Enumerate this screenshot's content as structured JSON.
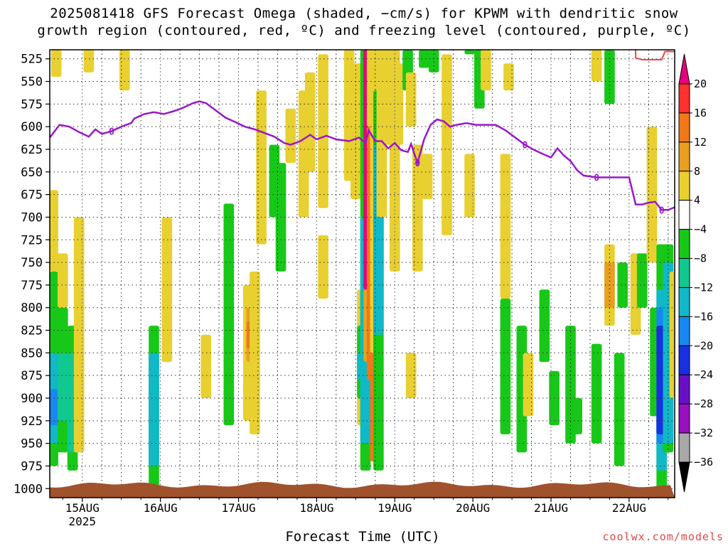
{
  "title_line1": "2025081418 GFS Forecast Omega (shaded, −cm/s) for KPWM with dendritic snow",
  "title_line2": "growth region (contoured, red, ºC) and freezing level (contoured, purple, ºC)",
  "xlabel": "Forecast Time (UTC)",
  "credit": "coolwx.com/models",
  "chart_data": {
    "type": "heatmap",
    "y_ticks": [
      "525",
      "550",
      "575",
      "600",
      "625",
      "650",
      "675",
      "700",
      "725",
      "750",
      "775",
      "800",
      "825",
      "850",
      "875",
      "900",
      "925",
      "950",
      "975",
      "1000"
    ],
    "y_range": [
      515,
      1010
    ],
    "x_ticks": [
      "15AUG",
      "16AUG",
      "17AUG",
      "18AUG",
      "19AUG",
      "20AUG",
      "21AUG",
      "22AUG"
    ],
    "x_year_label": "2025",
    "x_range_hours": [
      -10,
      182
    ],
    "colorbar": {
      "labels": [
        "20",
        "16",
        "12",
        "8",
        "4",
        "−4",
        "−8",
        "−12",
        "−16",
        "−20",
        "−24",
        "−28",
        "−32",
        "−36"
      ],
      "colors": [
        "#e8007a",
        "#ff3030",
        "#f07818",
        "#e8a020",
        "#e8d030",
        "#ffffff",
        "#18c818",
        "#10c890",
        "#10b8c8",
        "#1888f0",
        "#1830e0",
        "#6810c8",
        "#9810c0",
        "#a8a8a8",
        "#000000"
      ]
    },
    "freezing_level": {
      "label": "0",
      "color": "#9a18c8",
      "points": [
        [
          -10,
          612
        ],
        [
          -7,
          598
        ],
        [
          -4,
          600
        ],
        [
          -1,
          606
        ],
        [
          2,
          611
        ],
        [
          4,
          603
        ],
        [
          6,
          608
        ],
        [
          9,
          605
        ],
        [
          12,
          600
        ],
        [
          15,
          596
        ],
        [
          16,
          591
        ],
        [
          19,
          586
        ],
        [
          22,
          584
        ],
        [
          25,
          586
        ],
        [
          28,
          583
        ],
        [
          31,
          579
        ],
        [
          34,
          574
        ],
        [
          36,
          572
        ],
        [
          38,
          574
        ],
        [
          41,
          582
        ],
        [
          44,
          590
        ],
        [
          47,
          595
        ],
        [
          50,
          600
        ],
        [
          53,
          603
        ],
        [
          56,
          607
        ],
        [
          59,
          611
        ],
        [
          62,
          618
        ],
        [
          64,
          620
        ],
        [
          67,
          616
        ],
        [
          70,
          609
        ],
        [
          72,
          614
        ],
        [
          75,
          610
        ],
        [
          78,
          614
        ],
        [
          82,
          616
        ],
        [
          85,
          612
        ],
        [
          87,
          618
        ],
        [
          88,
          604
        ],
        [
          90,
          616
        ],
        [
          92,
          616
        ],
        [
          94,
          624
        ],
        [
          96,
          618
        ],
        [
          98,
          626
        ],
        [
          100,
          628
        ],
        [
          101,
          619
        ],
        [
          102,
          630
        ],
        [
          103,
          640
        ],
        [
          105,
          614
        ],
        [
          107,
          598
        ],
        [
          109,
          592
        ],
        [
          111,
          594
        ],
        [
          113,
          600
        ],
        [
          115,
          598
        ],
        [
          118,
          596
        ],
        [
          121,
          598
        ],
        [
          124,
          598
        ],
        [
          127,
          598
        ],
        [
          130,
          604
        ],
        [
          133,
          612
        ],
        [
          136,
          620
        ],
        [
          139,
          626
        ],
        [
          142,
          631
        ],
        [
          144,
          634
        ],
        [
          146,
          624
        ],
        [
          148,
          632
        ],
        [
          150,
          638
        ],
        [
          152,
          648
        ],
        [
          154,
          654
        ],
        [
          158,
          656
        ],
        [
          162,
          656
        ],
        [
          166,
          656
        ],
        [
          168,
          656
        ],
        [
          170,
          686
        ],
        [
          172,
          686
        ],
        [
          174,
          684
        ],
        [
          176,
          683
        ],
        [
          178,
          692
        ],
        [
          180,
          692
        ],
        [
          182,
          689
        ]
      ]
    },
    "dendritic_contour": {
      "color": "#f04848",
      "points": [
        [
          170,
          515
        ],
        [
          170,
          524
        ],
        [
          172,
          526
        ],
        [
          178,
          526
        ],
        [
          179,
          517
        ],
        [
          182,
          517
        ]
      ]
    },
    "omega_cells": [
      {
        "h": -8,
        "p1": 515,
        "p2": 545,
        "v": 5
      },
      {
        "h": 2,
        "p1": 515,
        "p2": 540,
        "v": 5
      },
      {
        "h": -9,
        "p1": 670,
        "p2": 760,
        "v": 5
      },
      {
        "h": -9,
        "p1": 760,
        "p2": 975,
        "v": -7
      },
      {
        "h": -9,
        "p1": 850,
        "p2": 950,
        "v": -12
      },
      {
        "h": -9,
        "p1": 890,
        "p2": 930,
        "v": -17
      },
      {
        "h": -6,
        "p1": 740,
        "p2": 800,
        "v": 5
      },
      {
        "h": -6,
        "p1": 800,
        "p2": 960,
        "v": -7
      },
      {
        "h": -6,
        "p1": 850,
        "p2": 925,
        "v": -9
      },
      {
        "h": -3,
        "p1": 820,
        "p2": 980,
        "v": -7
      },
      {
        "h": -3,
        "p1": 850,
        "p2": 960,
        "v": -11
      },
      {
        "h": -1,
        "p1": 700,
        "p2": 960,
        "v": 5
      },
      {
        "h": 13,
        "p1": 515,
        "p2": 560,
        "v": 5
      },
      {
        "h": 22,
        "p1": 820,
        "p2": 1000,
        "v": -7
      },
      {
        "h": 22,
        "p1": 850,
        "p2": 975,
        "v": -13
      },
      {
        "h": 26,
        "p1": 700,
        "p2": 860,
        "v": 5
      },
      {
        "h": 38,
        "p1": 830,
        "p2": 900,
        "v": 5
      },
      {
        "h": 45,
        "p1": 685,
        "p2": 930,
        "v": -7
      },
      {
        "h": 51,
        "p1": 775,
        "p2": 925,
        "v": 5
      },
      {
        "h": 52,
        "p1": 800,
        "p2": 860,
        "v": 8
      },
      {
        "h": 52,
        "p1": 815,
        "p2": 845,
        "v": 12
      },
      {
        "h": 53,
        "p1": 760,
        "p2": 940,
        "v": 5
      },
      {
        "h": 55,
        "p1": 560,
        "p2": 730,
        "v": 5
      },
      {
        "h": 59,
        "p1": 620,
        "p2": 700,
        "v": -7
      },
      {
        "h": 61,
        "p1": 640,
        "p2": 760,
        "v": -7
      },
      {
        "h": 64,
        "p1": 580,
        "p2": 640,
        "v": 5
      },
      {
        "h": 68,
        "p1": 560,
        "p2": 700,
        "v": 5
      },
      {
        "h": 70,
        "p1": 540,
        "p2": 650,
        "v": 5
      },
      {
        "h": 74,
        "p1": 520,
        "p2": 690,
        "v": 5
      },
      {
        "h": 74,
        "p1": 720,
        "p2": 790,
        "v": 5
      },
      {
        "h": 82,
        "p1": 515,
        "p2": 660,
        "v": 5
      },
      {
        "h": 84,
        "p1": 530,
        "p2": 680,
        "v": 5
      },
      {
        "h": 86,
        "p1": 780,
        "p2": 930,
        "v": 5
      },
      {
        "h": 86,
        "p1": 820,
        "p2": 900,
        "v": -7
      },
      {
        "h": 86,
        "p1": 850,
        "p2": 880,
        "v": -12
      },
      {
        "h": 87,
        "p1": 515,
        "p2": 980,
        "v": -7
      },
      {
        "h": 87,
        "p1": 700,
        "p2": 950,
        "v": -12
      },
      {
        "h": 88,
        "p1": 515,
        "p2": 780,
        "v": 20
      },
      {
        "h": 88,
        "p1": 780,
        "p2": 860,
        "v": 8
      },
      {
        "h": 89,
        "p1": 515,
        "p2": 600,
        "v": 5
      },
      {
        "h": 89,
        "p1": 600,
        "p2": 880,
        "v": 12
      },
      {
        "h": 90,
        "p1": 515,
        "p2": 970,
        "v": 5
      },
      {
        "h": 90,
        "p1": 850,
        "p2": 970,
        "v": 12
      },
      {
        "h": 91,
        "p1": 560,
        "p2": 980,
        "v": -7
      },
      {
        "h": 91,
        "p1": 620,
        "p2": 830,
        "v": -13
      },
      {
        "h": 92,
        "p1": 515,
        "p2": 700,
        "v": 5
      },
      {
        "h": 94,
        "p1": 515,
        "p2": 620,
        "v": 5
      },
      {
        "h": 96,
        "p1": 515,
        "p2": 760,
        "v": 5
      },
      {
        "h": 97,
        "p1": 530,
        "p2": 620,
        "v": 5
      },
      {
        "h": 100,
        "p1": 515,
        "p2": 560,
        "v": -7
      },
      {
        "h": 101,
        "p1": 540,
        "p2": 600,
        "v": 5
      },
      {
        "h": 101,
        "p1": 850,
        "p2": 900,
        "v": 5
      },
      {
        "h": 103,
        "p1": 620,
        "p2": 760,
        "v": 5
      },
      {
        "h": 105,
        "p1": 515,
        "p2": 535,
        "v": -7
      },
      {
        "h": 106,
        "p1": 630,
        "p2": 680,
        "v": 5
      },
      {
        "h": 108,
        "p1": 515,
        "p2": 540,
        "v": -7
      },
      {
        "h": 112,
        "p1": 520,
        "p2": 720,
        "v": 5
      },
      {
        "h": 119,
        "p1": 515,
        "p2": 520,
        "v": -7
      },
      {
        "h": 119,
        "p1": 630,
        "p2": 700,
        "v": 5
      },
      {
        "h": 122,
        "p1": 515,
        "p2": 580,
        "v": -7
      },
      {
        "h": 124,
        "p1": 515,
        "p2": 560,
        "v": 5
      },
      {
        "h": 130,
        "p1": 630,
        "p2": 790,
        "v": 5
      },
      {
        "h": 130,
        "p1": 790,
        "p2": 940,
        "v": -7
      },
      {
        "h": 131,
        "p1": 530,
        "p2": 560,
        "v": 5
      },
      {
        "h": 135,
        "p1": 820,
        "p2": 960,
        "v": -7
      },
      {
        "h": 137,
        "p1": 850,
        "p2": 920,
        "v": 5
      },
      {
        "h": 142,
        "p1": 780,
        "p2": 860,
        "v": -7
      },
      {
        "h": 145,
        "p1": 870,
        "p2": 930,
        "v": -7
      },
      {
        "h": 150,
        "p1": 820,
        "p2": 950,
        "v": -7
      },
      {
        "h": 152,
        "p1": 900,
        "p2": 940,
        "v": -7
      },
      {
        "h": 158,
        "p1": 515,
        "p2": 550,
        "v": 5
      },
      {
        "h": 158,
        "p1": 840,
        "p2": 950,
        "v": -7
      },
      {
        "h": 162,
        "p1": 515,
        "p2": 575,
        "v": -7
      },
      {
        "h": 162,
        "p1": 730,
        "p2": 820,
        "v": 5
      },
      {
        "h": 162,
        "p1": 750,
        "p2": 800,
        "v": 8
      },
      {
        "h": 165,
        "p1": 850,
        "p2": 975,
        "v": -7
      },
      {
        "h": 166,
        "p1": 750,
        "p2": 800,
        "v": -7
      },
      {
        "h": 170,
        "p1": 740,
        "p2": 830,
        "v": 5
      },
      {
        "h": 172,
        "p1": 740,
        "p2": 800,
        "v": -7
      },
      {
        "h": 175,
        "p1": 600,
        "p2": 750,
        "v": 5
      },
      {
        "h": 176,
        "p1": 800,
        "p2": 920,
        "v": -7
      },
      {
        "h": 178,
        "p1": 730,
        "p2": 1000,
        "v": -7
      },
      {
        "h": 178,
        "p1": 780,
        "p2": 980,
        "v": -12
      },
      {
        "h": 178,
        "p1": 800,
        "p2": 950,
        "v": -17
      },
      {
        "h": 178,
        "p1": 820,
        "p2": 940,
        "v": -22
      },
      {
        "h": 180,
        "p1": 730,
        "p2": 960,
        "v": -7
      },
      {
        "h": 180,
        "p1": 750,
        "p2": 950,
        "v": -13
      },
      {
        "h": 182,
        "p1": 760,
        "p2": 900,
        "v": 5
      }
    ]
  }
}
